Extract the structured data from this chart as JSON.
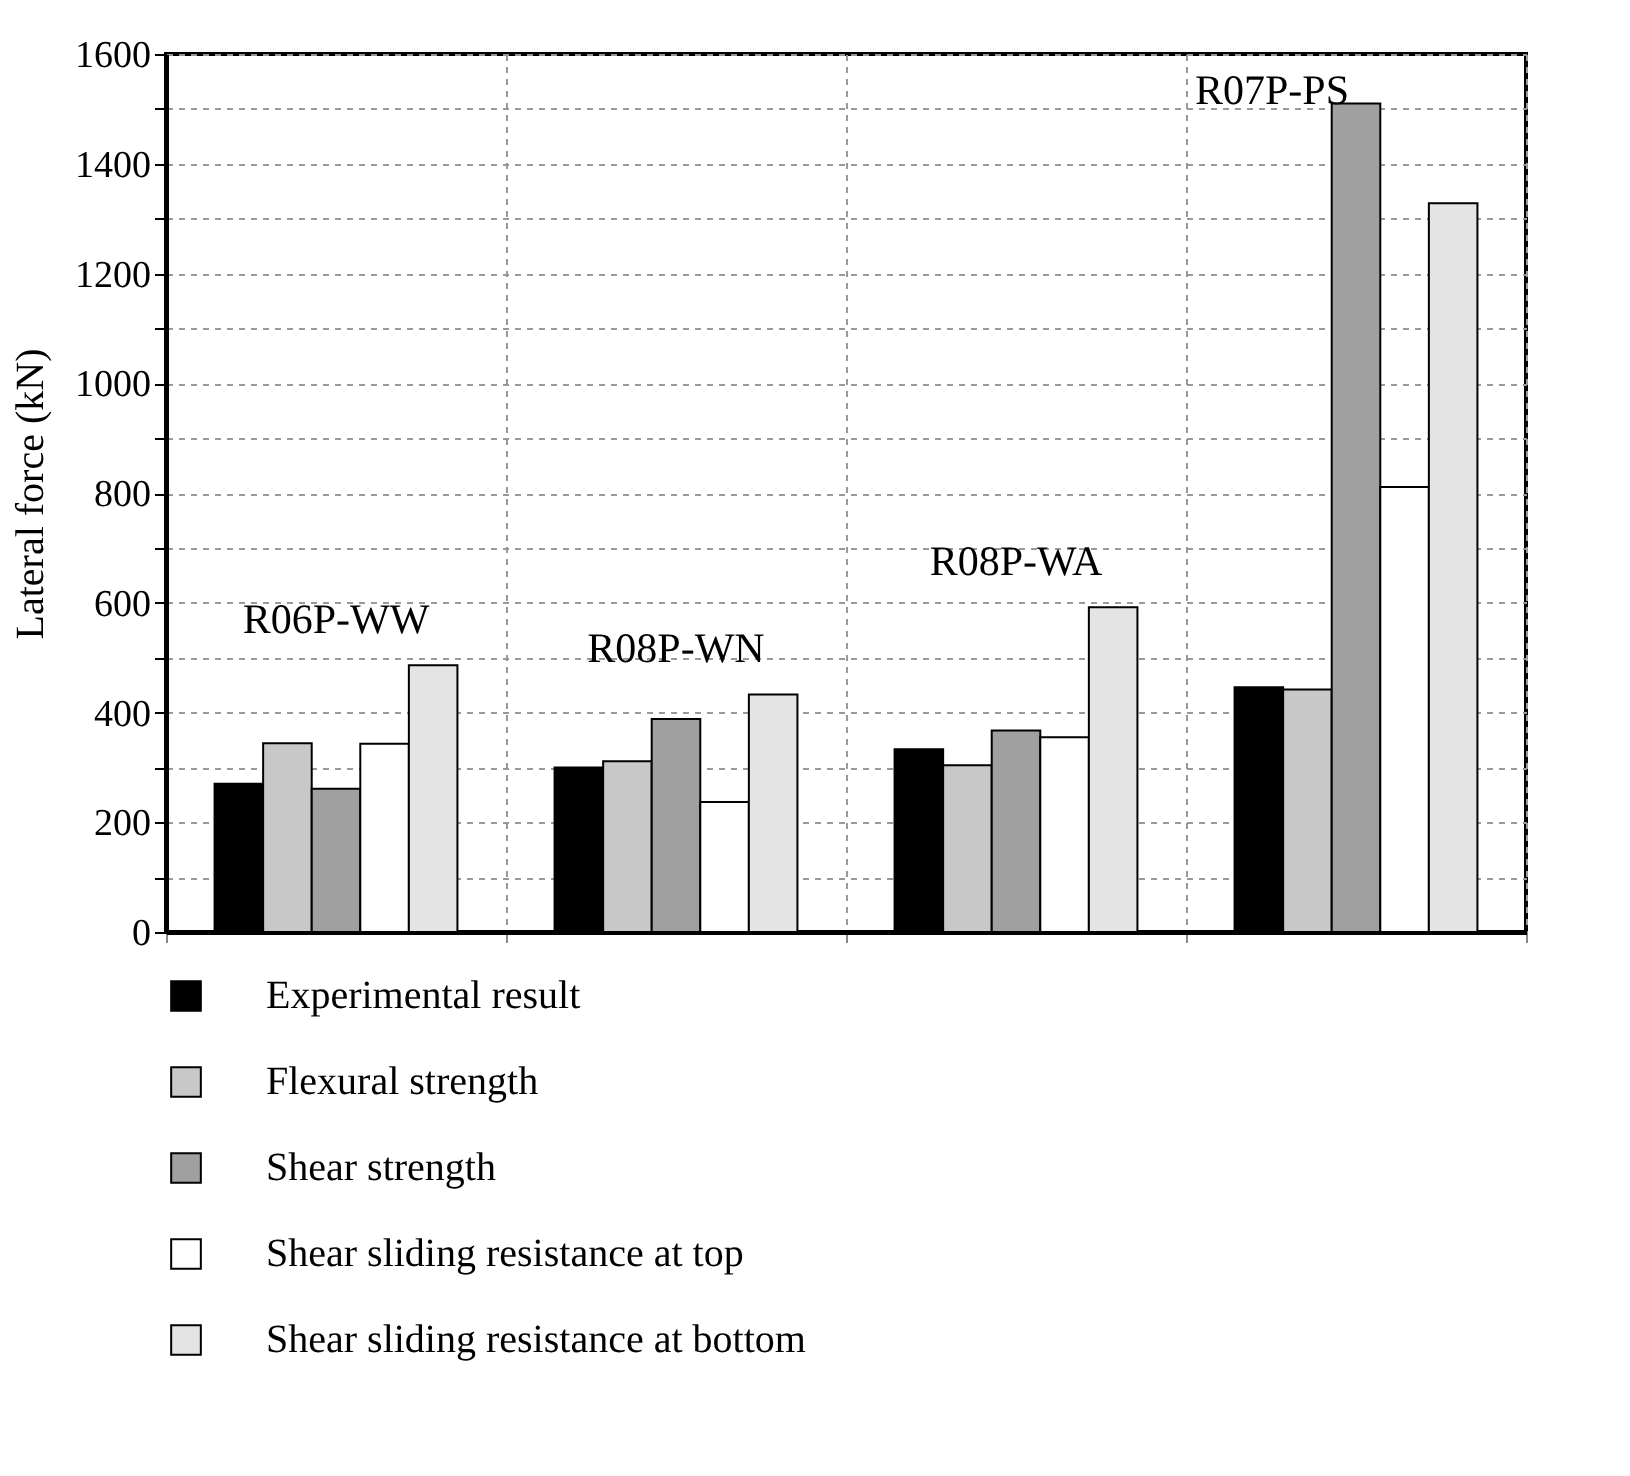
{
  "chart_data": {
    "type": "bar",
    "ylabel": "Lateral force (kN)",
    "categories": [
      "R06P-WW",
      "R08P-WN",
      "R08P-WA",
      "R07P-PS"
    ],
    "series": [
      {
        "name": "Experimental result",
        "color": "#000000",
        "values": [
          270,
          300,
          333,
          446
        ]
      },
      {
        "name": "Flexural strength",
        "color": "#c8c8c8",
        "values": [
          344,
          311,
          304,
          442
        ]
      },
      {
        "name": "Shear strength",
        "color": "#a0a0a0",
        "values": [
          261,
          388,
          367,
          1510
        ]
      },
      {
        "name": "Shear sliding resistance at top",
        "color": "#ffffff",
        "values": [
          343,
          237,
          355,
          811
        ]
      },
      {
        "name": "Shear sliding resistance at bottom",
        "color": "#e4e4e4",
        "values": [
          486,
          433,
          592,
          1328
        ]
      }
    ],
    "ylim": [
      0,
      1600
    ],
    "yticks": [
      0,
      {
        "value": 100,
        "label": null
      },
      200,
      {
        "value": 300,
        "label": null
      },
      400,
      {
        "value": 500,
        "label": null
      },
      600,
      {
        "value": 700,
        "label": null
      },
      800,
      {
        "value": 900,
        "label": null
      },
      1000,
      {
        "value": 1100,
        "label": null
      },
      1200,
      {
        "value": 1300,
        "label": null
      },
      1400,
      {
        "value": 1500,
        "label": null
      },
      1600
    ],
    "grid": true,
    "legend": "bottom"
  }
}
